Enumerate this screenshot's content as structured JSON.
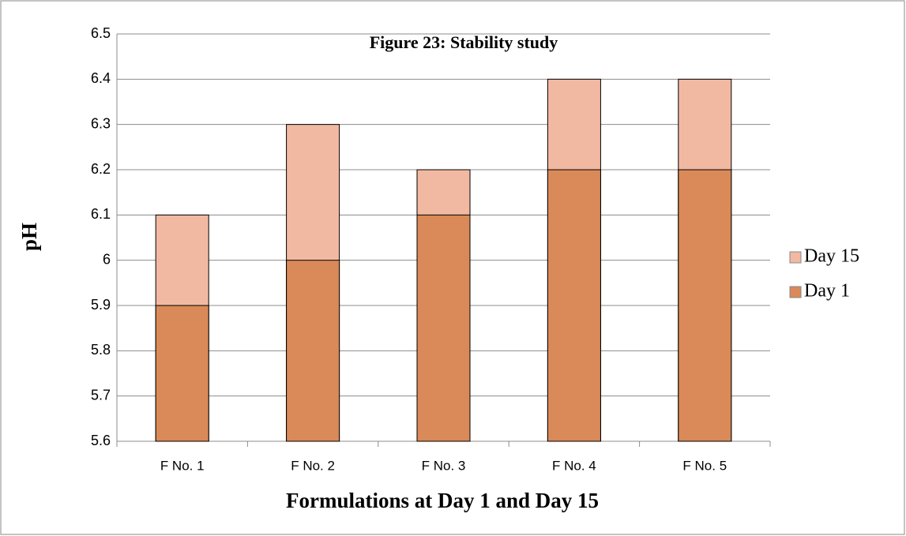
{
  "chart_data": {
    "type": "overlap_bar",
    "title": "Figure 23: Stability study",
    "x_label": "Formulations at Day 1 and Day 15",
    "y_label": "pH",
    "categories": [
      "F No. 1",
      "F No. 2",
      "F No. 3",
      "F No. 4",
      "F No. 5"
    ],
    "series": [
      {
        "name": "Day 15",
        "color": "#f2b9a2",
        "values": [
          6.1,
          6.3,
          6.2,
          6.4,
          6.4
        ]
      },
      {
        "name": "Day 1",
        "color": "#d98a58",
        "values": [
          5.9,
          6.0,
          6.1,
          6.2,
          6.2
        ]
      }
    ],
    "ylim": [
      5.6,
      6.5
    ],
    "yticks": [
      5.6,
      5.7,
      5.8,
      5.9,
      6,
      6.1,
      6.2,
      6.3,
      6.4,
      6.5
    ],
    "grid": true,
    "legend": "right"
  }
}
